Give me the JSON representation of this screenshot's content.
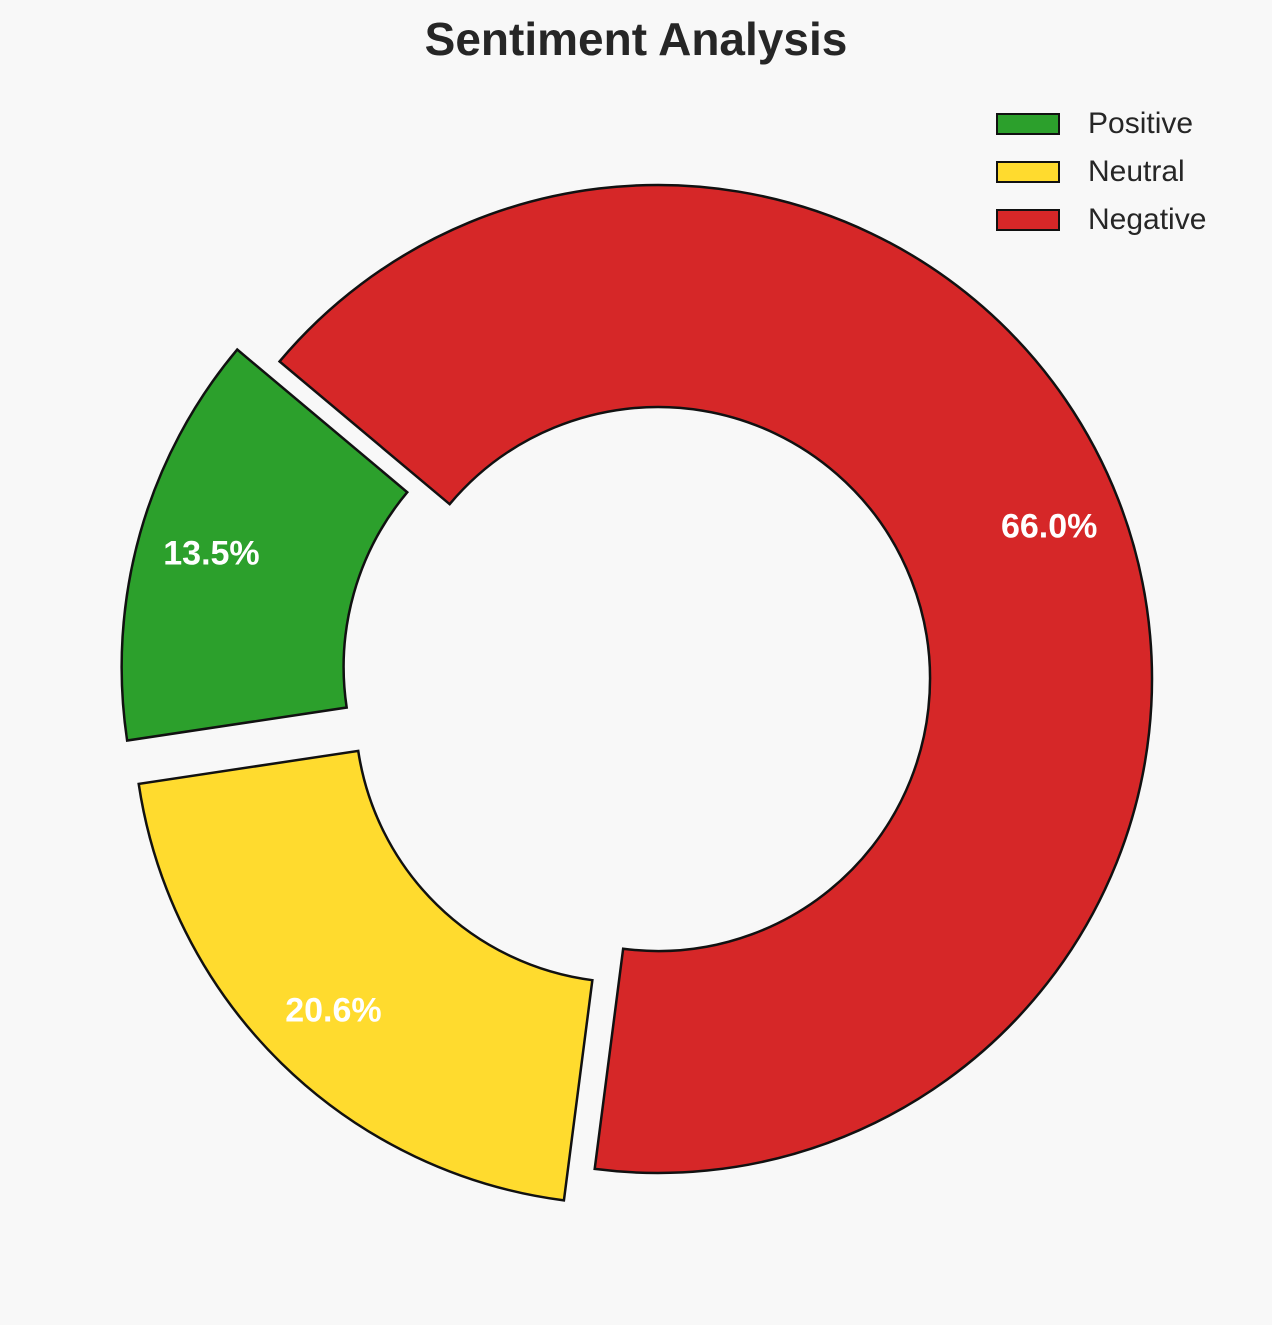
{
  "chart_data": {
    "type": "pie",
    "title": "Sentiment Analysis",
    "categories": [
      "Positive",
      "Neutral",
      "Negative"
    ],
    "values": [
      13.5,
      20.6,
      66.0
    ],
    "labels": [
      "13.5%",
      "20.6%",
      "66.0%"
    ],
    "colors": [
      "#2ca02c",
      "#ffdb2e",
      "#d62728"
    ],
    "exploded": [
      true,
      true,
      false
    ],
    "donut": true,
    "start_angle": 140,
    "legend_position": "top-right"
  }
}
